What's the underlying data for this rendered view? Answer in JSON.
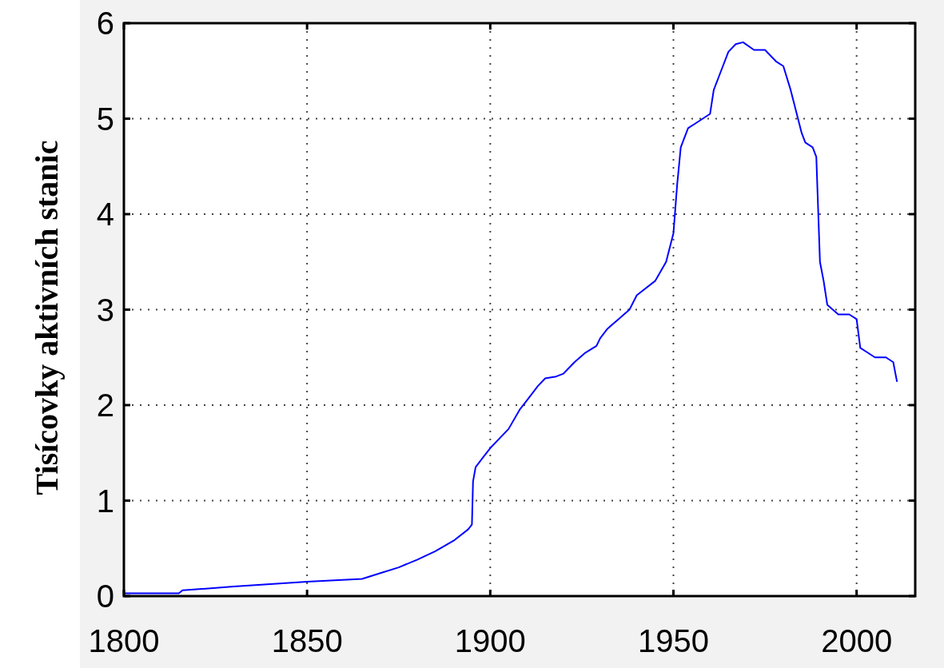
{
  "chart_data": {
    "type": "line",
    "ylabel": "Tisícovky aktivních stanic",
    "x": [
      1800,
      1815,
      1816,
      1830,
      1850,
      1865,
      1870,
      1875,
      1880,
      1885,
      1890,
      1894,
      1895,
      1895.3,
      1896,
      1898,
      1900,
      1905,
      1908,
      1910,
      1913,
      1915,
      1918,
      1920,
      1923,
      1926,
      1929,
      1930,
      1932,
      1935,
      1938,
      1940,
      1945,
      1948,
      1950,
      1951,
      1952,
      1954,
      1956,
      1960,
      1961,
      1963,
      1965,
      1967,
      1969,
      1972,
      1975,
      1978,
      1980,
      1982,
      1984,
      1985,
      1986,
      1988,
      1989,
      1990,
      1991,
      1992,
      1995,
      1998,
      2000,
      2001,
      2003,
      2005,
      2008,
      2010,
      2011
    ],
    "series": [
      {
        "color": "#0000ff",
        "values": [
          0.03,
          0.03,
          0.06,
          0.1,
          0.15,
          0.18,
          0.24,
          0.3,
          0.38,
          0.47,
          0.58,
          0.7,
          0.75,
          1.2,
          1.35,
          1.45,
          1.55,
          1.75,
          1.95,
          2.05,
          2.2,
          2.28,
          2.3,
          2.33,
          2.45,
          2.55,
          2.62,
          2.7,
          2.8,
          2.9,
          3.0,
          3.15,
          3.3,
          3.5,
          3.8,
          4.3,
          4.7,
          4.9,
          4.95,
          5.05,
          5.3,
          5.5,
          5.7,
          5.78,
          5.8,
          5.72,
          5.72,
          5.6,
          5.55,
          5.3,
          5.0,
          4.85,
          4.75,
          4.7,
          4.6,
          3.5,
          3.3,
          3.05,
          2.95,
          2.95,
          2.9,
          2.6,
          2.55,
          2.5,
          2.5,
          2.45,
          2.25
        ]
      }
    ],
    "xlim": [
      1800,
      2016
    ],
    "xticks": [
      1800,
      1850,
      1900,
      1950,
      2000
    ],
    "ylim": [
      0,
      6
    ],
    "yticks": [
      0,
      1,
      2,
      3,
      4,
      5,
      6
    ],
    "grid": true,
    "marker": "none",
    "line_style": "solid"
  }
}
